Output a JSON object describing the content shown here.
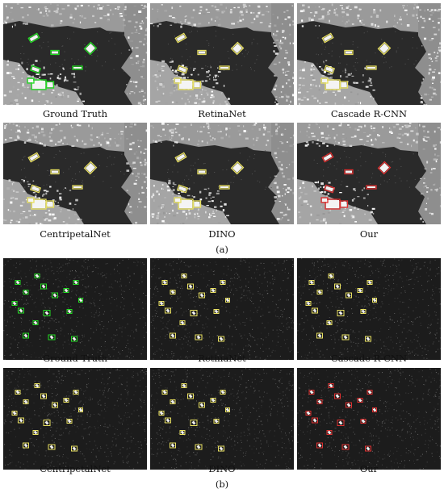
{
  "figure": {
    "group_a": {
      "label": "(a)",
      "panels": [
        {
          "caption": "Ground Truth",
          "box_color": "#22dd22"
        },
        {
          "caption": "RetinaNet",
          "box_color": "#e8e060"
        },
        {
          "caption": "Cascade R-CNN",
          "box_color": "#e8e060"
        },
        {
          "caption": "CentripetalNet",
          "box_color": "#e8e060"
        },
        {
          "caption": "DINO",
          "box_color": "#e8e060"
        },
        {
          "caption": "Our",
          "box_color": "#e03030"
        }
      ]
    },
    "group_b": {
      "label": "(b)",
      "panels": [
        {
          "caption": "Ground Truth",
          "box_color": "#22dd22"
        },
        {
          "caption": "RetinaNet",
          "box_color": "#e8e060"
        },
        {
          "caption": "Cascade R-CNN",
          "box_color": "#e8e060"
        },
        {
          "caption": "CentripetalNet",
          "box_color": "#e8e060"
        },
        {
          "caption": "DINO",
          "box_color": "#e8e060"
        },
        {
          "caption": "Our",
          "box_color": "#e03030"
        }
      ]
    }
  }
}
